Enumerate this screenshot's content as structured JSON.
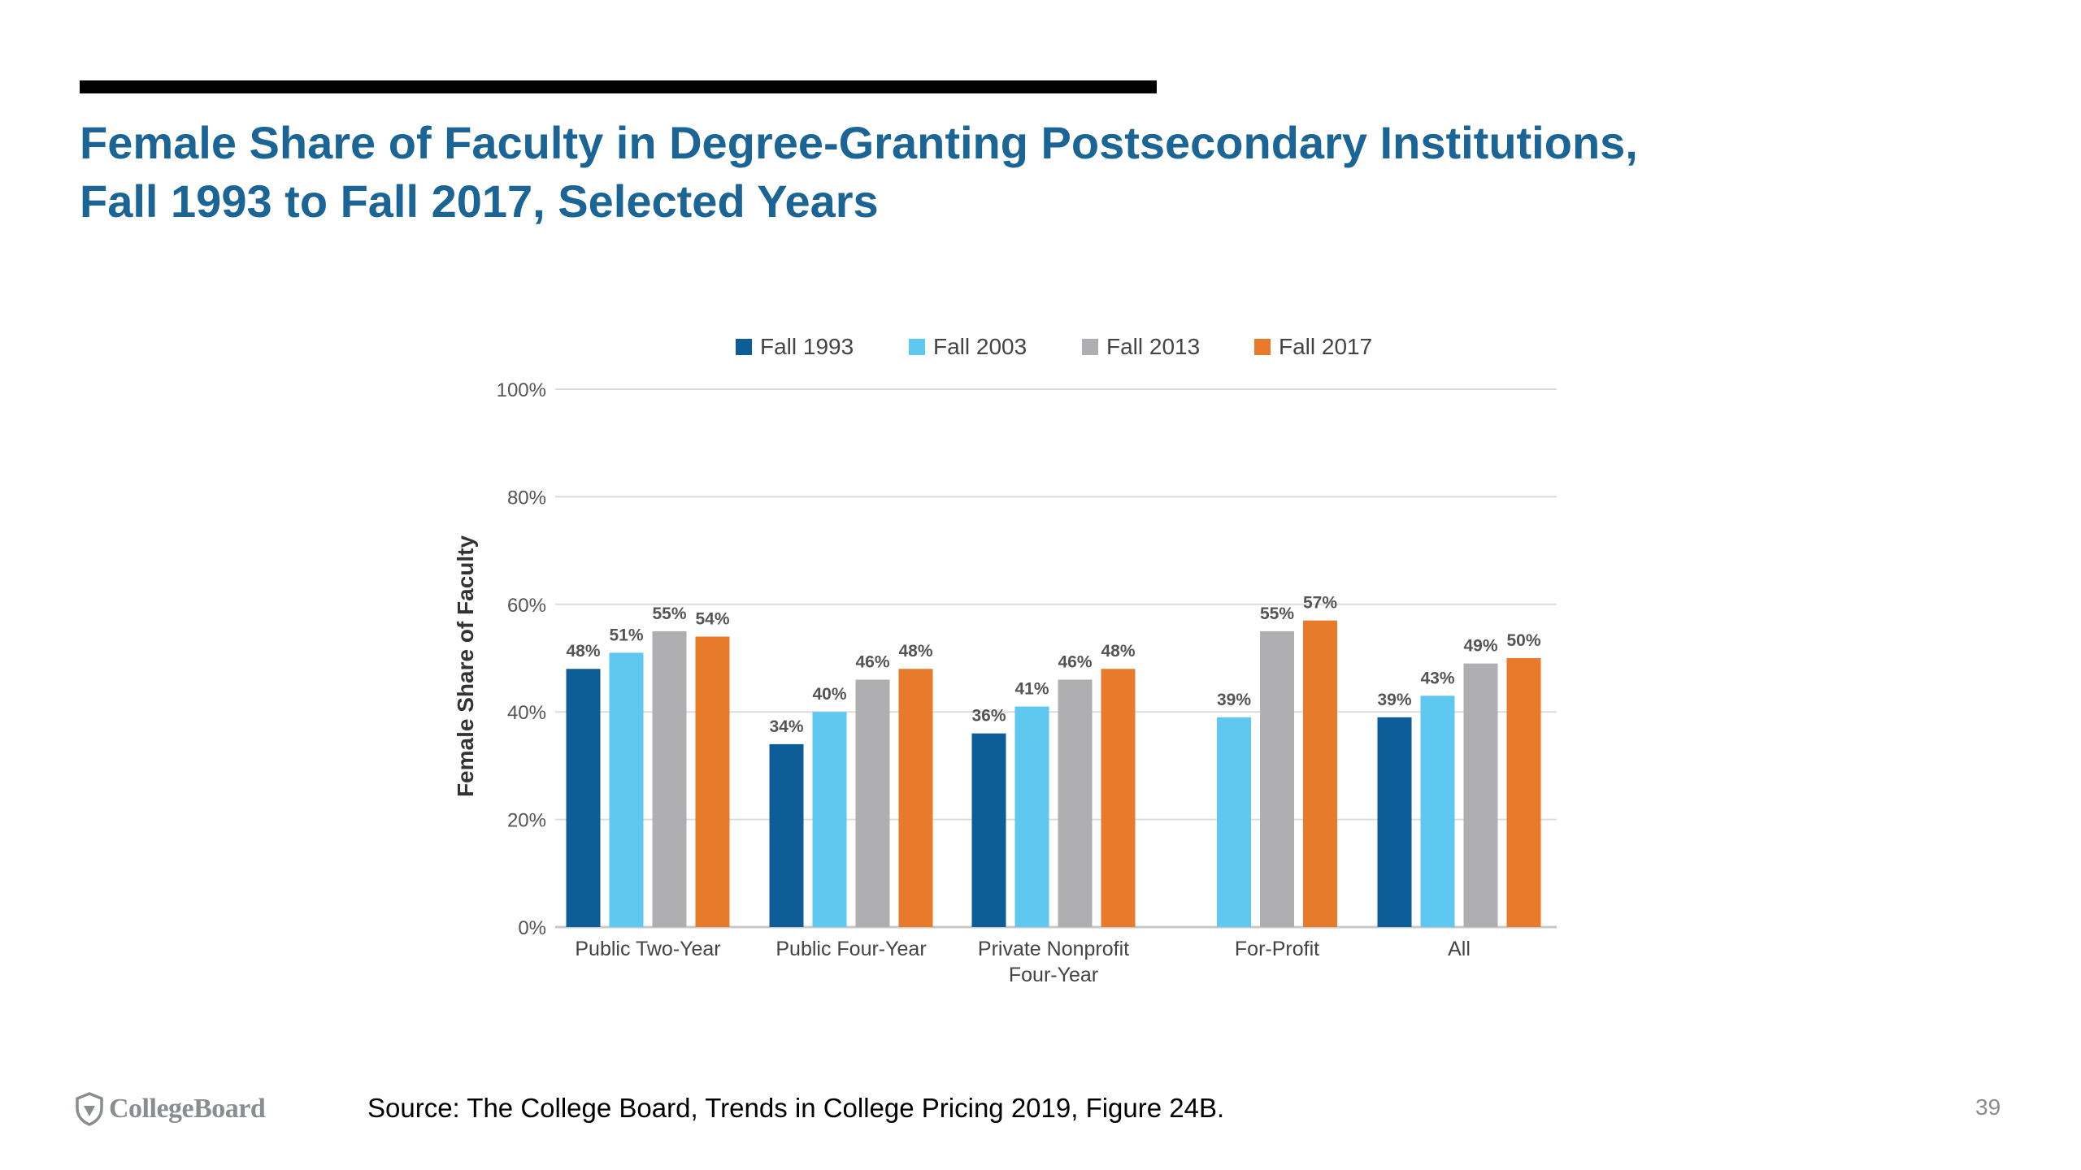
{
  "slide": {
    "title_line1": "Female Share of Faculty in Degree-Granting Postsecondary Institutions,",
    "title_line2": "Fall 1993 to Fall 2017, Selected Years",
    "source": "Source: The College Board, Trends in College Pricing 2019, Figure 24B.",
    "page_number": "39",
    "logo_text": "CollegeBoard"
  },
  "colors": {
    "title": "#1a6496",
    "series": [
      "#0d5d99",
      "#5ec8f0",
      "#afafb2",
      "#e77a2b"
    ]
  },
  "chart_data": {
    "type": "bar",
    "ylabel": "Female Share of Faculty",
    "ylim": [
      0,
      100
    ],
    "yticks": [
      0,
      20,
      40,
      60,
      80,
      100
    ],
    "ytick_labels": [
      "0%",
      "20%",
      "40%",
      "60%",
      "80%",
      "100%"
    ],
    "grid": true,
    "legend_position": "top-center",
    "categories": [
      "Public Two-Year",
      "Public Four-Year",
      "Private Nonprofit Four-Year",
      "For-Profit",
      "All"
    ],
    "category_label_lines": [
      [
        "Public Two-Year"
      ],
      [
        "Public Four-Year"
      ],
      [
        "Private Nonprofit",
        "Four-Year"
      ],
      [
        "For-Profit"
      ],
      [
        "All"
      ]
    ],
    "series": [
      {
        "name": "Fall 1993",
        "values": [
          48,
          34,
          36,
          null,
          39
        ],
        "labels": [
          "48%",
          "34%",
          "36%",
          null,
          "39%"
        ]
      },
      {
        "name": "Fall 2003",
        "values": [
          51,
          40,
          41,
          39,
          43
        ],
        "labels": [
          "51%",
          "40%",
          "41%",
          "39%",
          "43%"
        ]
      },
      {
        "name": "Fall 2013",
        "values": [
          55,
          46,
          46,
          55,
          49
        ],
        "labels": [
          "55%",
          "46%",
          "46%",
          "55%",
          "49%"
        ]
      },
      {
        "name": "Fall 2017",
        "values": [
          54,
          48,
          48,
          57,
          50
        ],
        "labels": [
          "54%",
          "48%",
          "48%",
          "57%",
          "50%"
        ]
      }
    ]
  }
}
